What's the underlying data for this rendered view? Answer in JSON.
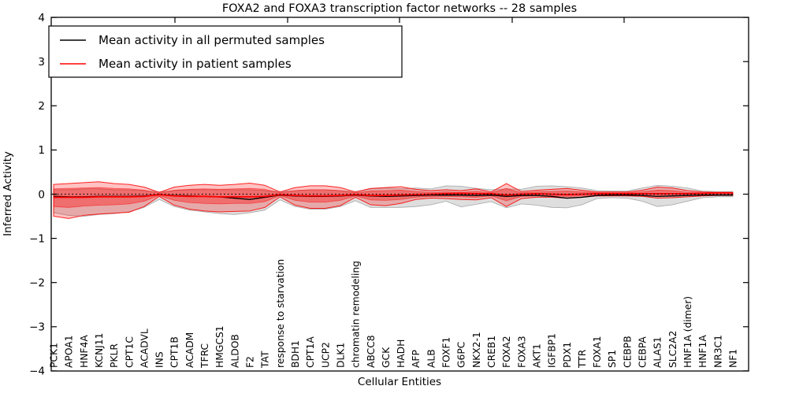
{
  "title": "FOXA2 and FOXA3 transcription factor networks -- 28 samples",
  "axes": {
    "xlabel": "Cellular Entities",
    "ylabel": "Inferred Activity",
    "ytick_labels": [
      "4",
      "3",
      "2",
      "1",
      "0",
      "−1",
      "−2",
      "−3",
      "−4"
    ],
    "ytick_values": [
      4,
      3,
      2,
      1,
      0,
      -1,
      -2,
      -3,
      -4
    ]
  },
  "legend": {
    "entries": [
      {
        "label": "Mean activity in all permuted samples",
        "color": "#000000"
      },
      {
        "label": "Mean activity in patient samples",
        "color": "#ff0000"
      }
    ]
  },
  "colors": {
    "permuted_line": "#000000",
    "patient_line": "#ff0000",
    "permuted_band_fill": "rgba(0,0,0,0.13)",
    "permuted_band_edge": "rgba(110,110,110,0.55)",
    "patient_outer_fill": "rgba(255,0,0,0.24)",
    "patient_outer_edge": "rgba(255,0,0,0.85)",
    "patient_inner_fill": "rgba(255,0,0,0.35)",
    "patient_inner_edge": "rgba(255,0,0,0.55)",
    "zero_line": "#000000",
    "axis_frame": "#000000"
  },
  "chart_data": {
    "type": "line",
    "title": "FOXA2 and FOXA3 transcription factor networks -- 28 samples",
    "xlabel": "Cellular Entities",
    "ylabel": "Inferred Activity",
    "ylim": [
      -4,
      4
    ],
    "grid": false,
    "legend_position": "upper left",
    "categories": [
      "PCK1",
      "APOA1",
      "HNF4A",
      "KCNJ11",
      "PKLR",
      "CPT1C",
      "ACADVL",
      "INS",
      "CPT1B",
      "ACADM",
      "TFRC",
      "HMGCS1",
      "ALDOB",
      "F2",
      "TAT",
      "response to starvation",
      "BDH1",
      "CPT1A",
      "UCP2",
      "DLK1",
      "chromatin remodeling",
      "ABCC8",
      "GCK",
      "HADH",
      "AFP",
      "ALB",
      "FOXF1",
      "G6PC",
      "NKX2-1",
      "CREB1",
      "FOXA2",
      "FOXA3",
      "AKT1",
      "IGFBP1",
      "PDX1",
      "TTR",
      "FOXA1",
      "SP1",
      "CEBPB",
      "CEBPA",
      "ALAS1",
      "SLC2A2",
      "HNF1A (dimer)",
      "HNF1A",
      "NR3C1",
      "NF1"
    ],
    "series": [
      {
        "name": "Mean activity in all permuted samples",
        "color": "#000000",
        "values": [
          -0.05,
          -0.06,
          -0.06,
          -0.05,
          -0.05,
          -0.05,
          -0.04,
          -0.01,
          -0.03,
          -0.04,
          -0.05,
          -0.06,
          -0.09,
          -0.12,
          -0.07,
          -0.02,
          -0.04,
          -0.05,
          -0.05,
          -0.04,
          -0.02,
          -0.04,
          -0.05,
          -0.04,
          -0.03,
          -0.02,
          -0.02,
          -0.02,
          -0.03,
          -0.02,
          -0.05,
          -0.03,
          -0.03,
          -0.05,
          -0.09,
          -0.07,
          -0.03,
          -0.02,
          -0.02,
          -0.03,
          -0.05,
          -0.04,
          -0.03,
          -0.02,
          -0.02,
          -0.02
        ]
      },
      {
        "name": "Mean activity in patient samples",
        "color": "#ff0000",
        "values": [
          -0.07,
          -0.07,
          -0.07,
          -0.06,
          -0.06,
          -0.06,
          -0.05,
          -0.01,
          -0.04,
          -0.05,
          -0.05,
          -0.06,
          -0.06,
          -0.06,
          -0.05,
          -0.01,
          -0.03,
          -0.04,
          -0.04,
          -0.03,
          -0.01,
          -0.03,
          -0.03,
          -0.02,
          -0.01,
          0.0,
          0.01,
          0.02,
          0.01,
          0.01,
          -0.02,
          0.0,
          0.01,
          0.0,
          -0.01,
          0.0,
          0.01,
          0.01,
          0.01,
          0.01,
          0.01,
          0.01,
          0.01,
          0.02,
          0.03,
          0.03
        ]
      }
    ],
    "reference_line": {
      "name": "zero reference",
      "value": 0,
      "style": "dotted",
      "color": "#000000"
    },
    "bands": [
      {
        "name": "permuted samples spread",
        "top": [
          0.1,
          0.1,
          0.12,
          0.12,
          0.1,
          0.1,
          0.08,
          0.05,
          0.08,
          0.1,
          0.1,
          0.1,
          0.1,
          0.1,
          0.08,
          0.06,
          0.08,
          0.1,
          0.1,
          0.08,
          0.06,
          0.12,
          0.14,
          0.12,
          0.14,
          0.12,
          0.19,
          0.18,
          0.13,
          0.1,
          0.12,
          0.11,
          0.18,
          0.19,
          0.17,
          0.14,
          0.08,
          0.07,
          0.07,
          0.14,
          0.2,
          0.18,
          0.14,
          0.07,
          0.06,
          0.06
        ],
        "bottom": [
          -0.42,
          -0.48,
          -0.5,
          -0.46,
          -0.44,
          -0.4,
          -0.3,
          -0.12,
          -0.28,
          -0.36,
          -0.4,
          -0.44,
          -0.46,
          -0.42,
          -0.36,
          -0.13,
          -0.28,
          -0.34,
          -0.34,
          -0.28,
          -0.15,
          -0.3,
          -0.3,
          -0.3,
          -0.28,
          -0.24,
          -0.16,
          -0.29,
          -0.23,
          -0.17,
          -0.31,
          -0.22,
          -0.25,
          -0.3,
          -0.31,
          -0.24,
          -0.1,
          -0.08,
          -0.09,
          -0.16,
          -0.28,
          -0.24,
          -0.16,
          -0.08,
          -0.06,
          -0.06
        ]
      },
      {
        "name": "patient samples outer spread",
        "top": [
          0.22,
          0.24,
          0.26,
          0.28,
          0.24,
          0.22,
          0.16,
          0.04,
          0.16,
          0.2,
          0.22,
          0.2,
          0.22,
          0.25,
          0.2,
          0.05,
          0.15,
          0.19,
          0.19,
          0.15,
          0.05,
          0.13,
          0.15,
          0.17,
          0.11,
          0.08,
          0.1,
          0.08,
          0.12,
          0.05,
          0.24,
          0.06,
          0.09,
          0.11,
          0.13,
          0.09,
          0.05,
          0.05,
          0.05,
          0.09,
          0.16,
          0.14,
          0.08,
          0.05,
          0.04,
          0.04
        ],
        "bottom": [
          -0.5,
          -0.55,
          -0.48,
          -0.45,
          -0.43,
          -0.41,
          -0.28,
          -0.05,
          -0.25,
          -0.34,
          -0.38,
          -0.4,
          -0.39,
          -0.38,
          -0.3,
          -0.06,
          -0.25,
          -0.32,
          -0.32,
          -0.26,
          -0.07,
          -0.24,
          -0.26,
          -0.21,
          -0.12,
          -0.09,
          -0.1,
          -0.12,
          -0.13,
          -0.08,
          -0.28,
          -0.1,
          -0.07,
          -0.07,
          -0.09,
          -0.07,
          -0.04,
          -0.04,
          -0.04,
          -0.05,
          -0.09,
          -0.08,
          -0.06,
          -0.04,
          -0.03,
          -0.03
        ]
      },
      {
        "name": "patient samples inner spread",
        "top": [
          0.12,
          0.13,
          0.14,
          0.15,
          0.13,
          0.12,
          0.09,
          0.02,
          0.09,
          0.11,
          0.12,
          0.11,
          0.12,
          0.13,
          0.11,
          0.03,
          0.08,
          0.1,
          0.1,
          0.08,
          0.03,
          0.07,
          0.08,
          0.09,
          0.06,
          0.04,
          0.05,
          0.04,
          0.06,
          0.03,
          0.13,
          0.03,
          0.05,
          0.06,
          0.07,
          0.05,
          0.03,
          0.03,
          0.03,
          0.05,
          0.09,
          0.08,
          0.04,
          0.03,
          0.02,
          0.02
        ],
        "bottom": [
          -0.28,
          -0.3,
          -0.27,
          -0.25,
          -0.24,
          -0.22,
          -0.16,
          -0.03,
          -0.14,
          -0.19,
          -0.21,
          -0.22,
          -0.21,
          -0.21,
          -0.17,
          -0.03,
          -0.14,
          -0.18,
          -0.18,
          -0.14,
          -0.04,
          -0.13,
          -0.14,
          -0.12,
          -0.07,
          -0.05,
          -0.05,
          -0.06,
          -0.07,
          -0.04,
          -0.15,
          -0.05,
          -0.04,
          -0.04,
          -0.05,
          -0.04,
          -0.02,
          -0.02,
          -0.02,
          -0.03,
          -0.05,
          -0.04,
          -0.03,
          -0.02,
          -0.02,
          -0.02
        ]
      }
    ]
  }
}
